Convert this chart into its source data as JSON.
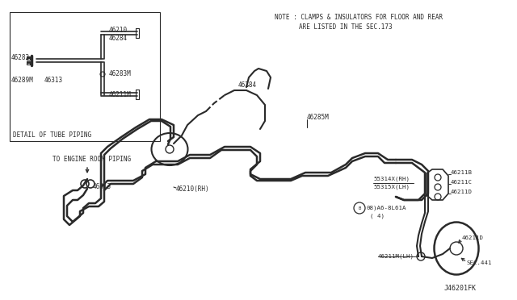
{
  "bg_color": "#ffffff",
  "line_color": "#2a2a2a",
  "text_color": "#2a2a2a",
  "note_line1": "NOTE : CLAMPS & INSULATORS FOR FLOOR AND REAR",
  "note_line2": "         ARE LISTED IN THE SEC.173",
  "footer": "J46201FK",
  "figsize": [
    6.4,
    3.72
  ],
  "dpi": 100
}
